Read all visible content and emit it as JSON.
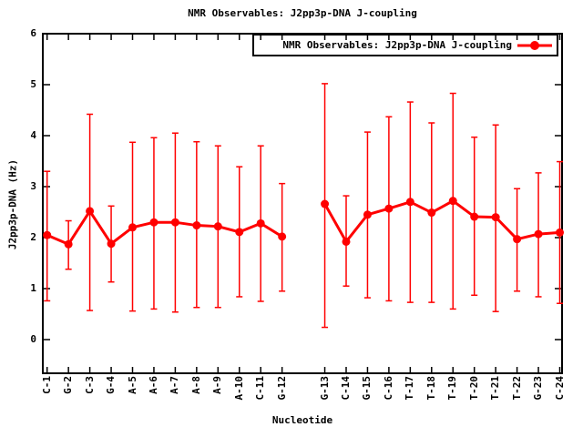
{
  "title": "NMR Observables: J2pp3p-DNA J-coupling",
  "legend": {
    "label": "NMR Observables: J2pp3p-DNA J-coupling",
    "marker": "filled-circle-on-line",
    "color": "#ff0000"
  },
  "axes": {
    "x_label": "Nucleotide",
    "y_label": "J2pp3p-DNA (Hz)",
    "y_tick_labels": [
      "0",
      "1",
      "2",
      "3",
      "4",
      "5",
      "6"
    ]
  },
  "colors": {
    "series": "#ff0000",
    "axis": "#000000",
    "text": "#000000",
    "background": "#ffffff"
  },
  "chart_data": {
    "type": "line",
    "title": "NMR Observables: J2pp3p-DNA J-coupling",
    "xlabel": "Nucleotide",
    "ylabel": "J2pp3p-DNA (Hz)",
    "ylim": [
      0,
      6
    ],
    "yticks": [
      0,
      1,
      2,
      3,
      4,
      5,
      6
    ],
    "grid": false,
    "legend_position": "top-right-inside-boxed",
    "error_bars": true,
    "series_name": "NMR Observables: J2pp3p-DNA J-coupling",
    "series_color": "#ff0000",
    "segments": [
      {
        "categories": [
          "C-1",
          "G-2",
          "C-3",
          "G-4",
          "A-5",
          "A-6",
          "A-7",
          "A-8",
          "A-9",
          "A-10",
          "C-11",
          "G-12"
        ],
        "values": [
          2.05,
          1.87,
          2.52,
          1.88,
          2.2,
          2.3,
          2.3,
          2.24,
          2.22,
          2.11,
          2.28,
          2.02
        ],
        "err_min": [
          0.76,
          1.38,
          0.57,
          1.13,
          0.56,
          0.6,
          0.54,
          0.63,
          0.63,
          0.84,
          0.75,
          0.95
        ],
        "err_max": [
          3.3,
          2.33,
          4.42,
          2.62,
          3.87,
          3.96,
          4.05,
          3.88,
          3.8,
          3.39,
          3.8,
          3.06
        ]
      },
      {
        "categories": [
          "G-13",
          "C-14",
          "G-15",
          "C-16",
          "T-17",
          "T-18",
          "T-19",
          "T-20",
          "T-21",
          "T-22",
          "G-23",
          "C-24"
        ],
        "values": [
          2.66,
          1.92,
          2.45,
          2.57,
          2.7,
          2.49,
          2.72,
          2.41,
          2.4,
          1.97,
          2.07,
          2.1
        ],
        "err_min": [
          0.24,
          1.05,
          0.82,
          0.76,
          0.73,
          0.73,
          0.6,
          0.87,
          0.55,
          0.95,
          0.84,
          0.71
        ],
        "err_max": [
          5.02,
          2.82,
          4.07,
          4.37,
          4.66,
          4.25,
          4.83,
          3.97,
          4.21,
          2.96,
          3.27,
          3.49
        ]
      }
    ]
  }
}
